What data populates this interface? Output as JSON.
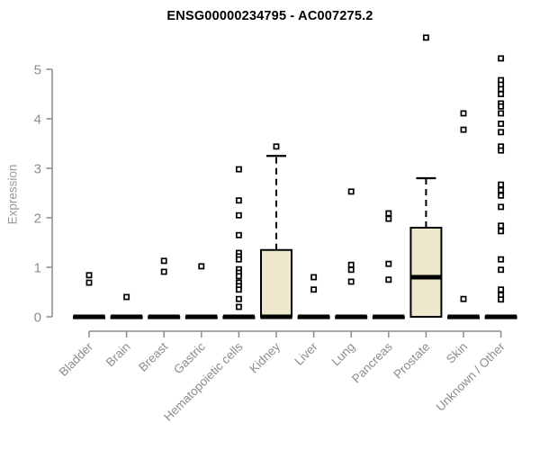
{
  "chart_data": {
    "type": "boxplot",
    "title": "ENSG00000234795 - AC007275.2",
    "ylabel": "Expression",
    "xlabel": "",
    "ylim": [
      0,
      5
    ],
    "yticks": [
      0,
      1,
      2,
      3,
      4,
      5
    ],
    "grid": false,
    "legend": null,
    "categories": [
      "Bladder",
      "Brain",
      "Breast",
      "Gastric",
      "Hematopoietic cells",
      "Kidney",
      "Liver",
      "Lung",
      "Pancreas",
      "Prostate",
      "Skin",
      "Unknown / Other"
    ],
    "boxes": [
      {
        "category": "Bladder",
        "q1": 0,
        "median": 0,
        "q3": 0,
        "whisker_low": 0,
        "whisker_high": 0,
        "outliers": [
          0.84,
          0.69
        ]
      },
      {
        "category": "Brain",
        "q1": 0,
        "median": 0,
        "q3": 0,
        "whisker_low": 0,
        "whisker_high": 0,
        "outliers": [
          0.4
        ]
      },
      {
        "category": "Breast",
        "q1": 0,
        "median": 0,
        "q3": 0,
        "whisker_low": 0,
        "whisker_high": 0,
        "outliers": [
          1.13,
          0.91
        ]
      },
      {
        "category": "Gastric",
        "q1": 0,
        "median": 0,
        "q3": 0,
        "whisker_low": 0,
        "whisker_high": 0,
        "outliers": [
          1.02
        ]
      },
      {
        "category": "Hematopoietic cells",
        "q1": 0,
        "median": 0,
        "q3": 0,
        "whisker_low": 0,
        "whisker_high": 0,
        "outliers": [
          2.98,
          2.35,
          2.05,
          1.65,
          1.29,
          1.22,
          1.16,
          0.96,
          0.89,
          0.82,
          0.69,
          0.62,
          0.55,
          0.36,
          0.2
        ]
      },
      {
        "category": "Kidney",
        "q1": 0,
        "median": 0,
        "q3": 1.35,
        "whisker_low": 0,
        "whisker_high": 3.25,
        "outliers": [
          3.44
        ]
      },
      {
        "category": "Liver",
        "q1": 0,
        "median": 0,
        "q3": 0,
        "whisker_low": 0,
        "whisker_high": 0,
        "outliers": [
          0.8,
          0.55
        ]
      },
      {
        "category": "Lung",
        "q1": 0,
        "median": 0,
        "q3": 0,
        "whisker_low": 0,
        "whisker_high": 0,
        "outliers": [
          2.53,
          1.05,
          0.95,
          0.71
        ]
      },
      {
        "category": "Pancreas",
        "q1": 0,
        "median": 0,
        "q3": 0,
        "whisker_low": 0,
        "whisker_high": 0,
        "outliers": [
          2.09,
          1.98,
          1.07,
          0.75
        ]
      },
      {
        "category": "Prostate",
        "q1": 0,
        "median": 0.8,
        "q3": 1.8,
        "whisker_low": 0,
        "whisker_high": 2.8,
        "outliers": [
          5.64
        ]
      },
      {
        "category": "Skin",
        "q1": 0,
        "median": 0,
        "q3": 0,
        "whisker_low": 0,
        "whisker_high": 0,
        "outliers": [
          4.11,
          3.78,
          0.36
        ]
      },
      {
        "category": "Unknown / Other",
        "q1": 0,
        "median": 0,
        "q3": 0,
        "whisker_low": 0,
        "whisker_high": 0,
        "outliers": [
          5.22,
          4.78,
          4.69,
          4.6,
          4.5,
          4.31,
          4.25,
          4.11,
          3.9,
          3.73,
          3.44,
          3.36,
          2.67,
          2.56,
          2.45,
          2.22,
          1.84,
          1.73,
          1.16,
          0.95,
          0.55,
          0.44,
          0.35
        ]
      }
    ],
    "colors": {
      "box_fill": "#ede8cd",
      "box_stroke": "#000000",
      "median": "#000000",
      "whisker": "#000000",
      "outlier_stroke": "#000000",
      "outlier_fill": "#ffffff",
      "axis": "#8c8c8c",
      "tick_label": "#8c8c8c",
      "title": "#000000",
      "background": "#ffffff"
    }
  }
}
